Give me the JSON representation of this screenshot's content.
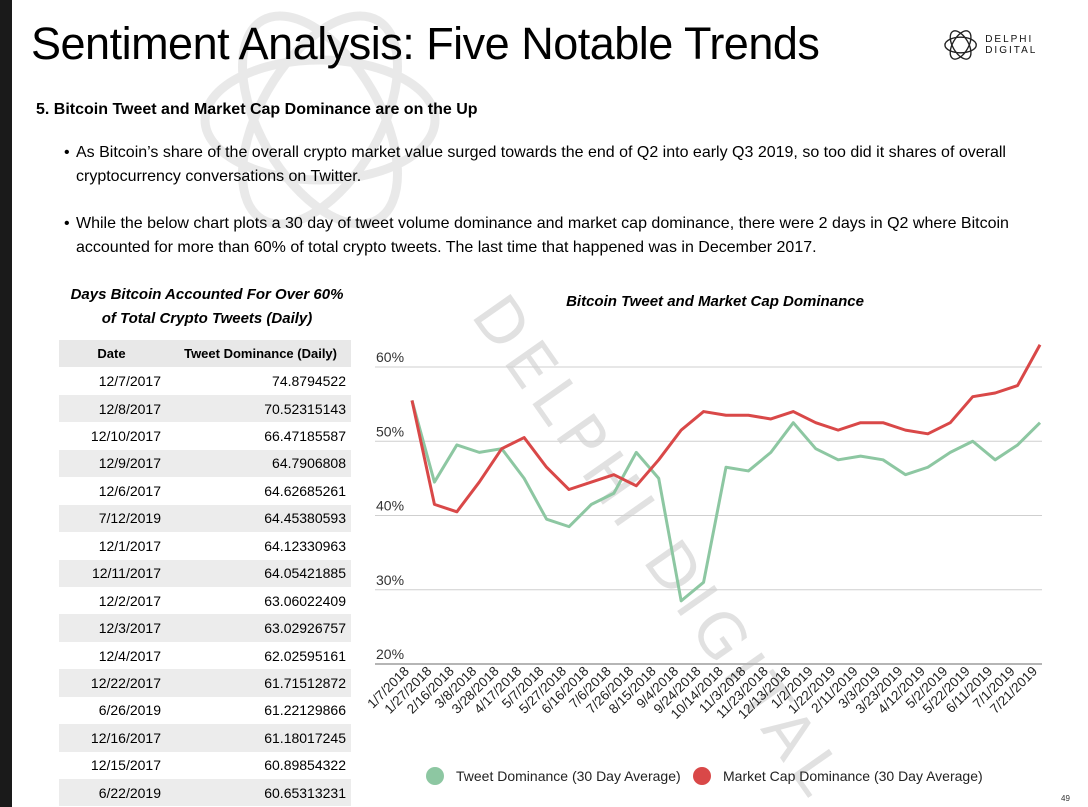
{
  "title": "Sentiment Analysis: Five Notable Trends",
  "logo": {
    "text": "DELPHI DIGITAL",
    "icon": "delphi-logo-icon"
  },
  "subheading": "5. Bitcoin Tweet and Market Cap Dominance are on the Up",
  "bullets": [
    "As Bitcoin’s share of the overall crypto market value surged towards the end of Q2 into early Q3 2019, so too did it shares of overall cryptocurrency conversations on Twitter.",
    "While the below chart plots a 30 day of tweet volume dominance and market cap dominance, there were 2 days in Q2 where Bitcoin accounted for more than 60% of total crypto tweets. The last time that happened was in December 2017."
  ],
  "table": {
    "title_line1": "Days Bitcoin Accounted For Over 60%",
    "title_line2": "of Total Crypto Tweets (Daily)",
    "headers": [
      "Date",
      "Tweet Dominance (Daily)"
    ],
    "rows": [
      [
        "12/7/2017",
        "74.8794522"
      ],
      [
        "12/8/2017",
        "70.52315143"
      ],
      [
        "12/10/2017",
        "66.47185587"
      ],
      [
        "12/9/2017",
        "64.7906808"
      ],
      [
        "12/6/2017",
        "64.62685261"
      ],
      [
        "7/12/2019",
        "64.45380593"
      ],
      [
        "12/1/2017",
        "64.12330963"
      ],
      [
        "12/11/2017",
        "64.05421885"
      ],
      [
        "12/2/2017",
        "63.06022409"
      ],
      [
        "12/3/2017",
        "63.02926757"
      ],
      [
        "12/4/2017",
        "62.02595161"
      ],
      [
        "12/22/2017",
        "61.71512872"
      ],
      [
        "6/26/2019",
        "61.22129866"
      ],
      [
        "12/16/2017",
        "61.18017245"
      ],
      [
        "12/15/2017",
        "60.89854322"
      ],
      [
        "6/22/2019",
        "60.65313231"
      ]
    ]
  },
  "page_number": "49",
  "watermark_text": "DELPHI DIGITAL",
  "chart_data": {
    "type": "line",
    "title": "Bitcoin Tweet and Market Cap Dominance",
    "ylim": [
      20,
      63
    ],
    "yticks": [
      "20%",
      "30%",
      "40%",
      "50%",
      "60%"
    ],
    "ytick_values": [
      20,
      30,
      40,
      50,
      60
    ],
    "grid": true,
    "legend_position": "bottom",
    "categories": [
      "1/7/2018",
      "1/27/2018",
      "2/16/2018",
      "3/8/2018",
      "3/28/2018",
      "4/17/2018",
      "5/7/2018",
      "5/27/2018",
      "6/16/2018",
      "7/6/2018",
      "7/26/2018",
      "8/15/2018",
      "9/4/2018",
      "9/24/2018",
      "10/14/2018",
      "11/3/2018",
      "11/23/2018",
      "12/13/2018",
      "1/2/2019",
      "1/22/2019",
      "2/11/2019",
      "3/3/2019",
      "3/23/2019",
      "4/12/2019",
      "5/2/2019",
      "5/22/2019",
      "6/11/2019",
      "7/1/2019",
      "7/21/2019"
    ],
    "series": [
      {
        "name": "Tweet Dominance (30 Day Average)",
        "color": "#8dc7a2",
        "values": [
          55.5,
          44.5,
          49.5,
          48.5,
          49.0,
          45.0,
          39.5,
          38.5,
          41.5,
          43.0,
          48.5,
          45.0,
          28.5,
          31.0,
          46.5,
          46.0,
          48.5,
          52.5,
          49.0,
          47.5,
          48.0,
          47.5,
          45.5,
          46.5,
          48.5,
          50.0,
          47.5,
          49.5,
          52.5
        ]
      },
      {
        "name": "Market Cap Dominance (30 Day Average)",
        "color": "#d94848",
        "values": [
          55.5,
          41.5,
          40.5,
          44.5,
          49.0,
          50.5,
          46.5,
          43.5,
          44.5,
          45.5,
          44.0,
          47.5,
          51.5,
          54.0,
          53.5,
          53.5,
          53.0,
          54.0,
          52.5,
          51.5,
          52.5,
          52.5,
          51.5,
          51.0,
          52.5,
          56.0,
          56.5,
          57.5,
          63.0
        ]
      }
    ]
  }
}
